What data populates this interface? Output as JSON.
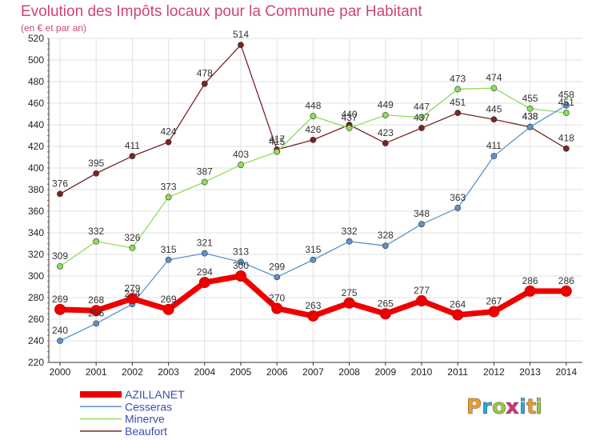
{
  "header": {
    "title": "Evolution des Impôts locaux pour la Commune par Habitant",
    "subtitle": "(en € et par an)"
  },
  "brand": {
    "letters": [
      "P",
      "r",
      "o",
      "x",
      "i",
      "t",
      "i"
    ],
    "colors": [
      "#f39a1f",
      "#2ca6e0",
      "#9bc73c",
      "#d6337a",
      "#2ca6e0",
      "#f39a1f",
      "#9bc73c"
    ]
  },
  "chart_data": {
    "type": "line",
    "x": [
      "2000",
      "2001",
      "2002",
      "2003",
      "2004",
      "2005",
      "2006",
      "2007",
      "2008",
      "2009",
      "2010",
      "2011",
      "2012",
      "2013",
      "2014"
    ],
    "ylim": [
      220,
      520
    ],
    "yticks": [
      220,
      240,
      260,
      280,
      300,
      320,
      340,
      360,
      380,
      400,
      420,
      440,
      460,
      480,
      500,
      520
    ],
    "grid": true,
    "legend_position": "bottom-left",
    "series": [
      {
        "name": "AZILLANET",
        "color": "#ee0000",
        "width": 7,
        "values": [
          269,
          268,
          279,
          269,
          294,
          300,
          270,
          263,
          275,
          265,
          277,
          264,
          267,
          286,
          286
        ]
      },
      {
        "name": "Cesseras",
        "color": "#5b93cc",
        "width": 1.3,
        "values": [
          240,
          256,
          274,
          315,
          321,
          313,
          299,
          315,
          332,
          328,
          348,
          363,
          411,
          438,
          458
        ]
      },
      {
        "name": "Minerve",
        "color": "#8fdc5a",
        "width": 1.3,
        "values": [
          309,
          332,
          326,
          373,
          387,
          403,
          415,
          448,
          437,
          449,
          447,
          473,
          474,
          455,
          451
        ]
      },
      {
        "name": "Beaufort",
        "color": "#7a2424",
        "width": 1.3,
        "values": [
          376,
          395,
          411,
          424,
          478,
          514,
          417,
          426,
          440,
          423,
          437,
          451,
          445,
          438,
          418
        ]
      }
    ]
  }
}
